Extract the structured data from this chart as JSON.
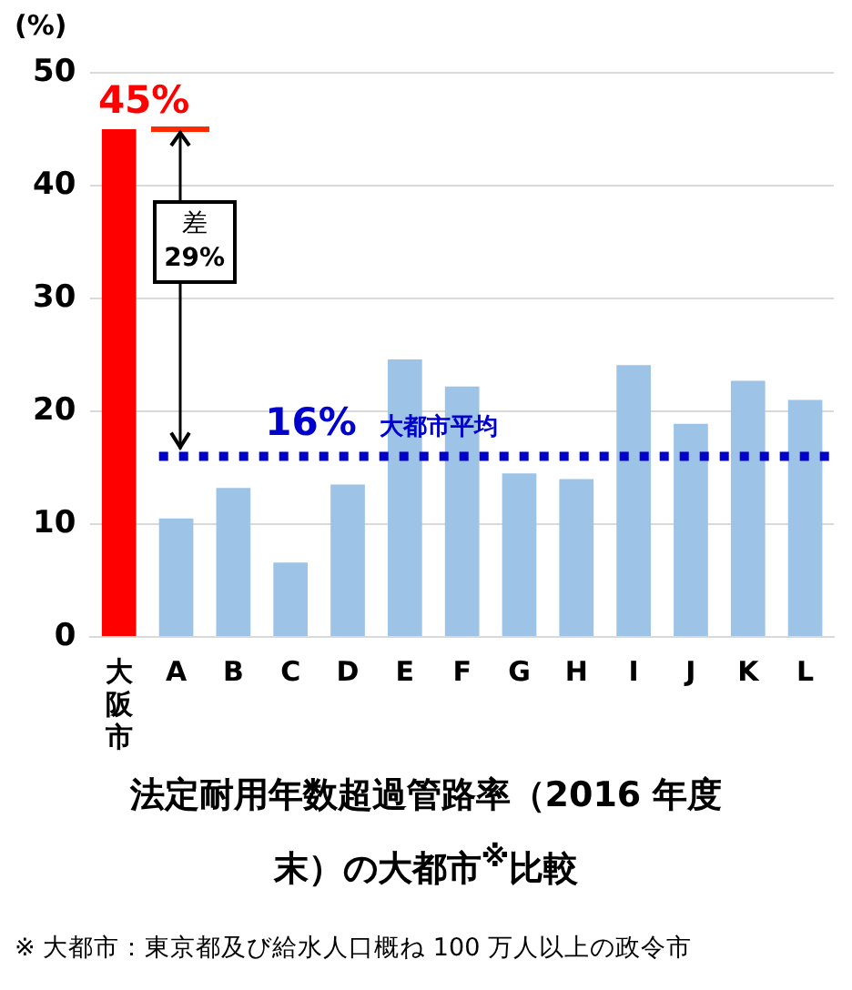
{
  "chart_data": {
    "type": "bar",
    "title": "法定耐用年数超過管路率（2016 年度末）の大都市$^{※}$比較",
    "ylabel": "(%)",
    "categories": [
      "大阪市",
      "A",
      "B",
      "C",
      "D",
      "E",
      "F",
      "G",
      "H",
      "I",
      "J",
      "K",
      "L"
    ],
    "values": [
      45,
      10.5,
      13.2,
      6.6,
      13.5,
      24.6,
      22.2,
      14.5,
      14.0,
      24.1,
      18.9,
      22.7,
      21.0
    ],
    "colors": [
      "#ff0000",
      "#9dc3e6",
      "#9dc3e6",
      "#9dc3e6",
      "#9dc3e6",
      "#9dc3e6",
      "#9dc3e6",
      "#9dc3e6",
      "#9dc3e6",
      "#9dc3e6",
      "#9dc3e6",
      "#9dc3e6",
      "#9dc3e6"
    ],
    "value_labels": [
      "45%",
      null,
      null,
      null,
      null,
      null,
      null,
      null,
      null,
      null,
      null,
      null,
      null
    ],
    "ylim": [
      0,
      50
    ],
    "yticks": [
      0,
      10,
      20,
      30,
      40,
      50
    ],
    "grid": "y",
    "legend": false,
    "ref_lines": [
      {
        "axis": "y",
        "value": 16,
        "label": "大都市平均",
        "color": "#0000cc",
        "line_style": "dotted"
      }
    ],
    "annotations": [
      {
        "text": "16%",
        "y": 16
      },
      "差\n29%",
      "※ 大都市：東京都及び給水人口概ね 100 万人以上の政令市"
    ]
  }
}
